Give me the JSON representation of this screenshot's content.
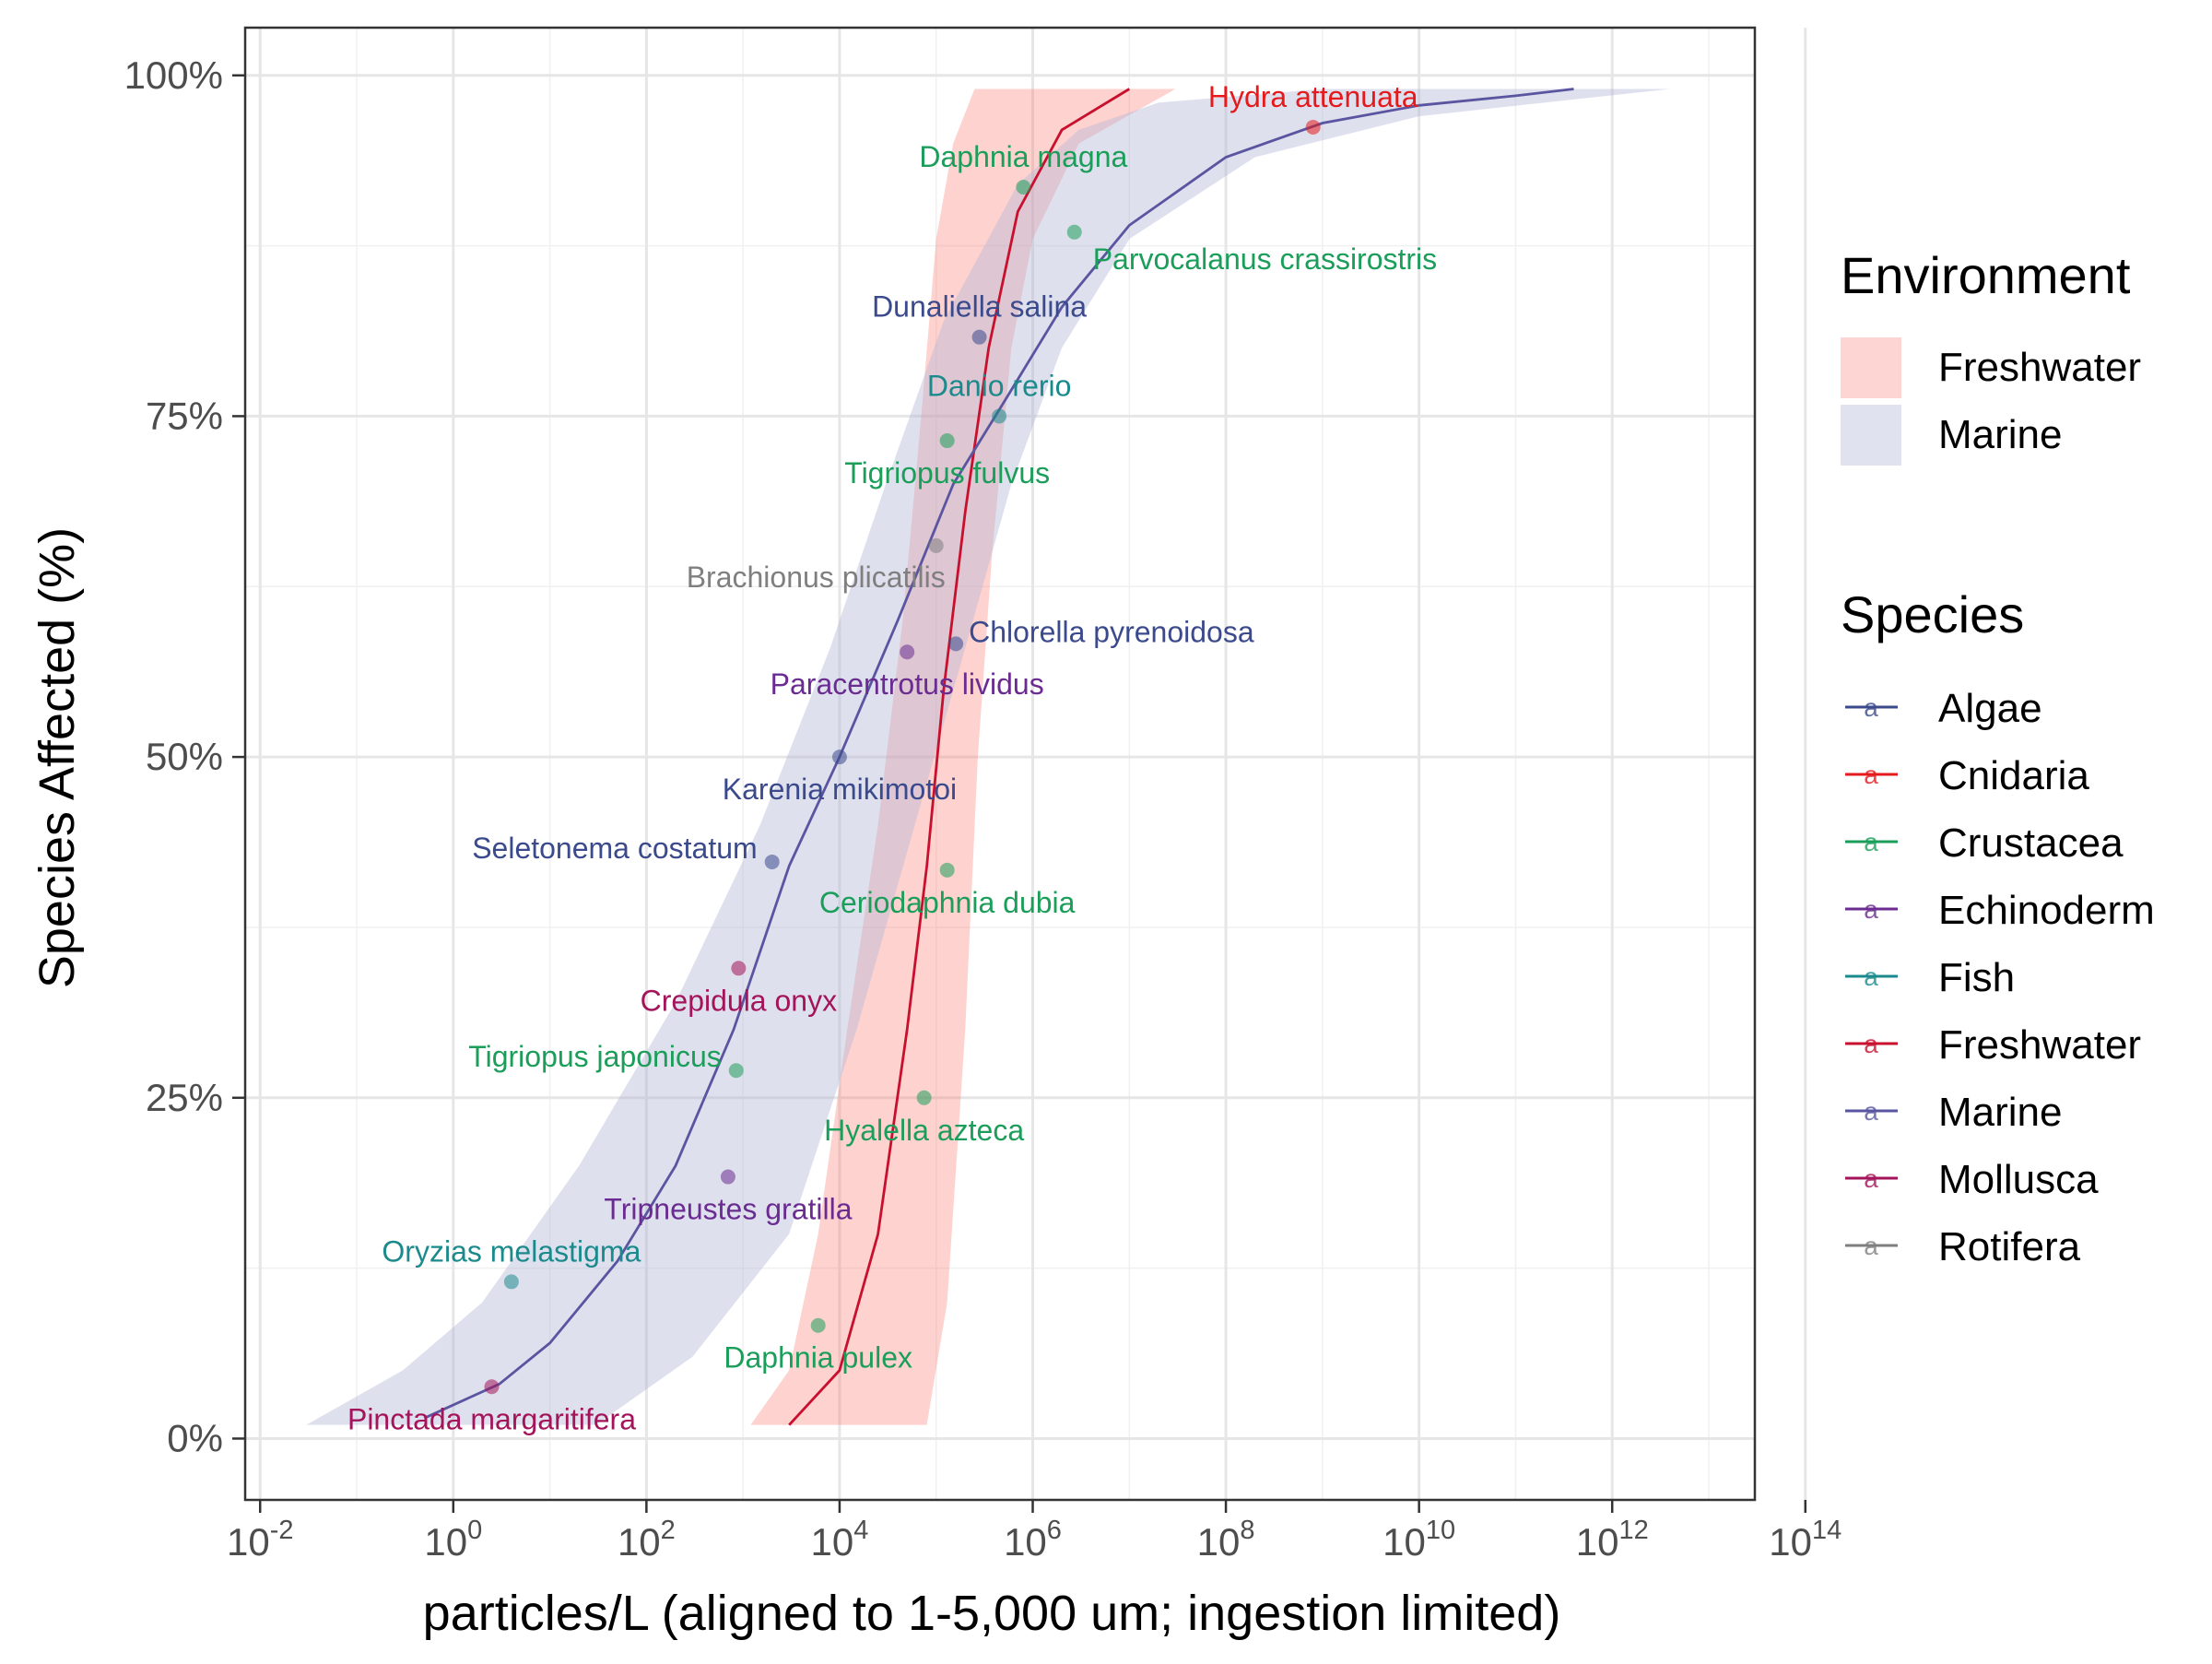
{
  "chart_data": {
    "type": "scatter",
    "xlabel": "particles/L (aligned to 1-5,000 um; ingestion limited)",
    "ylabel": "Species Affected (%)",
    "x_scale": "log10",
    "xlim": [
      0.007,
      30000000000000
    ],
    "ylim": [
      -0.045,
      1.035
    ],
    "x_ticks": [
      0.01,
      1,
      100,
      10000,
      1000000,
      100000000,
      10000000000,
      1000000000000,
      100000000000000
    ],
    "x_tick_labels": [
      {
        "base": "10",
        "exp": "-2"
      },
      {
        "base": "10",
        "exp": "0"
      },
      {
        "base": "10",
        "exp": "2"
      },
      {
        "base": "10",
        "exp": "4"
      },
      {
        "base": "10",
        "exp": "6"
      },
      {
        "base": "10",
        "exp": "8"
      },
      {
        "base": "10",
        "exp": "10"
      },
      {
        "base": "10",
        "exp": "12"
      },
      {
        "base": "10",
        "exp": "14"
      }
    ],
    "y_ticks": [
      0,
      0.25,
      0.5,
      0.75,
      1
    ],
    "y_tick_labels": [
      "0%",
      "25%",
      "50%",
      "75%",
      "100%"
    ],
    "grid": true,
    "legend_position": "right",
    "legends": {
      "environment": {
        "title": "Environment",
        "items": [
          {
            "label": "Freshwater",
            "color": "#f8766d"
          },
          {
            "label": "Marine",
            "color": "#b3b6d6"
          }
        ]
      },
      "species": {
        "title": "Species",
        "glyph": "a",
        "items": [
          {
            "label": "Algae",
            "color": "#3b4a8c"
          },
          {
            "label": "Cnidaria",
            "color": "#e41a1c"
          },
          {
            "label": "Crustacea",
            "color": "#1b9e5a"
          },
          {
            "label": "Echinoderm",
            "color": "#6a2c91"
          },
          {
            "label": "Fish",
            "color": "#1b8a8c"
          },
          {
            "label": "Freshwater",
            "color": "#c8102e"
          },
          {
            "label": "Marine",
            "color": "#5a55a0"
          },
          {
            "label": "Mollusca",
            "color": "#a3145a"
          },
          {
            "label": "Rotifera",
            "color": "#7f7f7f"
          }
        ]
      }
    },
    "series": [
      {
        "name": "Freshwater",
        "kind": "fitted-curve-with-band",
        "line_color": "#c8102e",
        "band_color": "#f8766d",
        "curve": [
          {
            "x": 3000,
            "y": 0.01
          },
          {
            "x": 10000,
            "y": 0.05
          },
          {
            "x": 25000,
            "y": 0.15
          },
          {
            "x": 50000,
            "y": 0.3
          },
          {
            "x": 80000,
            "y": 0.42
          },
          {
            "x": 120000,
            "y": 0.55
          },
          {
            "x": 200000,
            "y": 0.68
          },
          {
            "x": 350000,
            "y": 0.8
          },
          {
            "x": 700000,
            "y": 0.9
          },
          {
            "x": 2000000,
            "y": 0.96
          },
          {
            "x": 10000000,
            "y": 0.99
          }
        ],
        "band_lower": [
          {
            "x": 80000,
            "y": 0.01
          },
          {
            "x": 130000,
            "y": 0.1
          },
          {
            "x": 200000,
            "y": 0.3
          },
          {
            "x": 270000,
            "y": 0.5
          },
          {
            "x": 380000,
            "y": 0.65
          },
          {
            "x": 600000,
            "y": 0.8
          },
          {
            "x": 1000000,
            "y": 0.88
          },
          {
            "x": 3000000,
            "y": 0.95
          },
          {
            "x": 30000000,
            "y": 0.99
          }
        ],
        "band_upper": [
          {
            "x": 1200,
            "y": 0.01
          },
          {
            "x": 3000,
            "y": 0.05
          },
          {
            "x": 6000,
            "y": 0.15
          },
          {
            "x": 12000,
            "y": 0.3
          },
          {
            "x": 25000,
            "y": 0.45
          },
          {
            "x": 45000,
            "y": 0.6
          },
          {
            "x": 70000,
            "y": 0.75
          },
          {
            "x": 100000,
            "y": 0.88
          },
          {
            "x": 150000,
            "y": 0.95
          },
          {
            "x": 250000,
            "y": 0.99
          }
        ]
      },
      {
        "name": "Marine",
        "kind": "fitted-curve-with-band",
        "line_color": "#5a55a0",
        "band_color": "#b3b6d6",
        "curve": [
          {
            "x": 0.5,
            "y": 0.015
          },
          {
            "x": 3,
            "y": 0.04
          },
          {
            "x": 10,
            "y": 0.07
          },
          {
            "x": 50,
            "y": 0.13
          },
          {
            "x": 200,
            "y": 0.2
          },
          {
            "x": 800,
            "y": 0.3
          },
          {
            "x": 3000,
            "y": 0.42
          },
          {
            "x": 10000,
            "y": 0.5
          },
          {
            "x": 40000,
            "y": 0.6
          },
          {
            "x": 150000,
            "y": 0.7
          },
          {
            "x": 500000,
            "y": 0.76
          },
          {
            "x": 2000000,
            "y": 0.83
          },
          {
            "x": 10000000,
            "y": 0.89
          },
          {
            "x": 100000000,
            "y": 0.94
          },
          {
            "x": 1000000000,
            "y": 0.965
          },
          {
            "x": 10000000000,
            "y": 0.978
          },
          {
            "x": 100000000000,
            "y": 0.985
          },
          {
            "x": 400000000000,
            "y": 0.99
          }
        ],
        "band_lower": [
          {
            "x": 30,
            "y": 0.01
          },
          {
            "x": 300,
            "y": 0.06
          },
          {
            "x": 3000,
            "y": 0.15
          },
          {
            "x": 15000,
            "y": 0.3
          },
          {
            "x": 60000,
            "y": 0.45
          },
          {
            "x": 200000,
            "y": 0.58
          },
          {
            "x": 600000,
            "y": 0.7
          },
          {
            "x": 2000000,
            "y": 0.8
          },
          {
            "x": 10000000,
            "y": 0.88
          },
          {
            "x": 200000000,
            "y": 0.94
          },
          {
            "x": 10000000000,
            "y": 0.97
          },
          {
            "x": 4000000000000,
            "y": 0.99
          }
        ],
        "band_upper": [
          {
            "x": 0.03,
            "y": 0.01
          },
          {
            "x": 0.3,
            "y": 0.05
          },
          {
            "x": 2,
            "y": 0.1
          },
          {
            "x": 20,
            "y": 0.2
          },
          {
            "x": 200,
            "y": 0.32
          },
          {
            "x": 1500,
            "y": 0.45
          },
          {
            "x": 8000,
            "y": 0.58
          },
          {
            "x": 30000,
            "y": 0.7
          },
          {
            "x": 120000,
            "y": 0.82
          },
          {
            "x": 700000,
            "y": 0.92
          },
          {
            "x": 3000000,
            "y": 0.96
          },
          {
            "x": 20000000,
            "y": 0.98
          },
          {
            "x": 1000000000,
            "y": 0.99
          }
        ]
      }
    ],
    "points": [
      {
        "label": "Hydra attenuata",
        "group": "Cnidaria",
        "x": 800000000,
        "y": 0.962,
        "label_pos": "above"
      },
      {
        "label": "Daphnia magna",
        "group": "Crustacea",
        "x": 800000,
        "y": 0.918,
        "label_pos": "above"
      },
      {
        "label": "Parvocalanus crassirostris",
        "group": "Crustacea",
        "x": 2700000,
        "y": 0.885,
        "label_pos": "below-right"
      },
      {
        "label": "Dunaliella salina",
        "group": "Algae",
        "x": 280000,
        "y": 0.808,
        "label_pos": "above"
      },
      {
        "label": "Danio rerio",
        "group": "Fish",
        "x": 450000,
        "y": 0.75,
        "label_pos": "above"
      },
      {
        "label": "Tigriopus fulvus",
        "group": "Crustacea",
        "x": 130000,
        "y": 0.732,
        "label_pos": "below"
      },
      {
        "label": "Brachionus plicatilis",
        "group": "Rotifera",
        "x": 100000,
        "y": 0.655,
        "label_pos": "below-left"
      },
      {
        "label": "Chlorella pyrenoidosa",
        "group": "Algae",
        "x": 160000,
        "y": 0.583,
        "label_pos": "right"
      },
      {
        "label": "Paracentrotus lividus",
        "group": "Echinoderm",
        "x": 50000,
        "y": 0.577,
        "label_pos": "below"
      },
      {
        "label": "Karenia mikimotoi",
        "group": "Algae",
        "x": 10000,
        "y": 0.5,
        "label_pos": "below"
      },
      {
        "label": "Seletonema costatum",
        "group": "Algae",
        "x": 2000,
        "y": 0.423,
        "label_pos": "left"
      },
      {
        "label": "Ceriodaphnia dubia",
        "group": "Crustacea",
        "x": 130000,
        "y": 0.417,
        "label_pos": "below"
      },
      {
        "label": "Crepidula onyx",
        "group": "Mollusca",
        "x": 900,
        "y": 0.345,
        "label_pos": "below"
      },
      {
        "label": "Tigriopus japonicus",
        "group": "Crustacea",
        "x": 850,
        "y": 0.27,
        "label_pos": "left"
      },
      {
        "label": "Hyalella azteca",
        "group": "Crustacea",
        "x": 75000,
        "y": 0.25,
        "label_pos": "below"
      },
      {
        "label": "Tripneustes gratilla",
        "group": "Echinoderm",
        "x": 700,
        "y": 0.192,
        "label_pos": "below"
      },
      {
        "label": "Oryzias melastigma",
        "group": "Fish",
        "x": 4,
        "y": 0.115,
        "label_pos": "above"
      },
      {
        "label": "Daphnia pulex",
        "group": "Crustacea",
        "x": 6000,
        "y": 0.083,
        "label_pos": "below"
      },
      {
        "label": "Pinctada margaritifera",
        "group": "Mollusca",
        "x": 2.5,
        "y": 0.038,
        "label_pos": "below"
      }
    ]
  }
}
